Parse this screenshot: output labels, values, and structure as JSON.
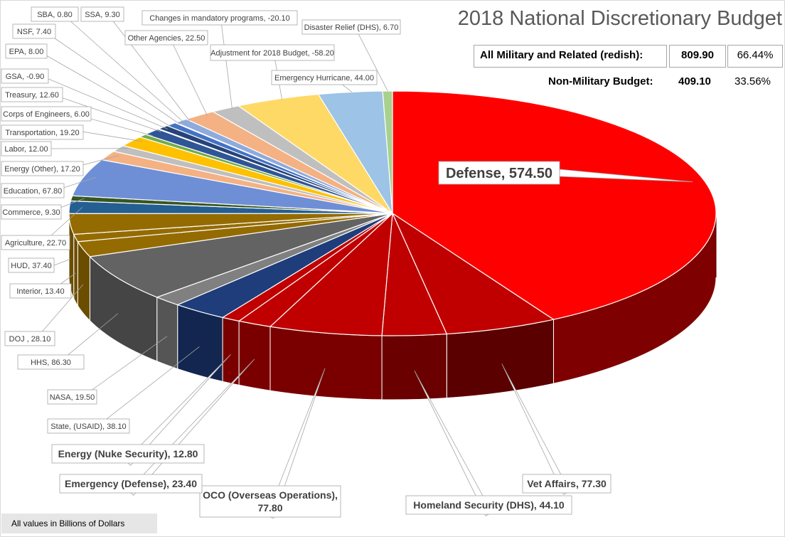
{
  "chart_data": {
    "type": "pie",
    "title": "2018 National Discretionary Budget",
    "units_note": "All values in Billions of Dollars",
    "slices": [
      {
        "name": "Defense",
        "value": 574.5,
        "label": "Defense, 574.50",
        "color": "#ff0000",
        "side": "#7f0000",
        "military": true
      },
      {
        "name": "Vet Affairs",
        "value": 77.3,
        "label": "Vet Affairs, 77.30",
        "color": "#c00000",
        "side": "#5a0000",
        "military": true
      },
      {
        "name": "Homeland Security (DHS)",
        "value": 44.1,
        "label": "Homeland Security (DHS), 44.10",
        "color": "#c00000",
        "side": "#6a0000",
        "military": true
      },
      {
        "name": "OCO (Overseas Operations)",
        "value": 77.8,
        "label": "OCO (Overseas Operations),\n77.80",
        "color": "#c00000",
        "side": "#7a0000",
        "military": true
      },
      {
        "name": "Emergency (Defense)",
        "value": 23.4,
        "label": "Emergency (Defense), 23.40",
        "color": "#c00000",
        "side": "#7a0000",
        "military": true
      },
      {
        "name": "Energy (Nuke Security)",
        "value": 12.8,
        "label": "Energy (Nuke Security), 12.80",
        "color": "#c00000",
        "side": "#7a0000",
        "military": true
      },
      {
        "name": "State, (USAID)",
        "value": 38.1,
        "label": "State, (USAID), 38.10",
        "color": "#1f3d7a",
        "side": "#122650"
      },
      {
        "name": "NASA",
        "value": 19.5,
        "label": "NASA, 19.50",
        "color": "#808080",
        "side": "#555555"
      },
      {
        "name": "HHS",
        "value": 86.3,
        "label": "HHS, 86.30",
        "color": "#636363",
        "side": "#454545"
      },
      {
        "name": "DOJ",
        "value": 28.1,
        "label": "DOJ , 28.10",
        "color": "#946b00",
        "side": "#6b4d00"
      },
      {
        "name": "Interior",
        "value": 13.4,
        "label": "Interior, 13.40",
        "color": "#946b00",
        "side": "#6b4d00"
      },
      {
        "name": "HUD",
        "value": 37.4,
        "label": "HUD, 37.40",
        "color": "#946b00",
        "side": "#6b4d00"
      },
      {
        "name": "Agriculture",
        "value": 22.7,
        "label": "Agriculture, 22.70",
        "color": "#255e91",
        "side": "#1a4468"
      },
      {
        "name": "Commerce",
        "value": 9.3,
        "label": "Commerce, 9.30",
        "color": "#375623",
        "side": "#243b17"
      },
      {
        "name": "Education",
        "value": 67.8,
        "label": "Education, 67.80",
        "color": "#6e8fd6",
        "side": "#4a64a0"
      },
      {
        "name": "Energy (Other)",
        "value": 17.2,
        "label": "Energy (Other), 17.20",
        "color": "#f4b183",
        "side": "#c08050"
      },
      {
        "name": "Labor",
        "value": 12.0,
        "label": "Labor, 12.00",
        "color": "#bfbfbf",
        "side": "#8f8f8f"
      },
      {
        "name": "Transportation",
        "value": 19.2,
        "label": "Transportation, 19.20",
        "color": "#ffc000",
        "side": "#c09000"
      },
      {
        "name": "Corps of Engineers",
        "value": 6.0,
        "label": "Corps of Engineers, 6.00",
        "color": "#70ad47",
        "side": "#4f7d32"
      },
      {
        "name": "Treasury",
        "value": 12.6,
        "label": "Treasury, 12.60",
        "color": "#2f5597",
        "side": "#213d6c"
      },
      {
        "name": "GSA",
        "value": -0.9,
        "label": "GSA, -0.90",
        "color": "#ed7d31",
        "side": "#b05a1f"
      },
      {
        "name": "EPA",
        "value": 8.0,
        "label": "EPA, 8.00",
        "color": "#264478",
        "side": "#1a3055"
      },
      {
        "name": "NSF",
        "value": 7.4,
        "label": "NSF, 7.40",
        "color": "#4472c4",
        "side": "#2f5090"
      },
      {
        "name": "SBA",
        "value": 0.8,
        "label": "SBA, 0.80",
        "color": "#636363",
        "side": "#454545"
      },
      {
        "name": "SSA",
        "value": 9.3,
        "label": "SSA, 9.30",
        "color": "#8faadc",
        "side": "#6a80a8"
      },
      {
        "name": "Other Agencies",
        "value": 22.5,
        "label": "Other Agencies, 22.50",
        "color": "#f4b183",
        "side": "#c08050"
      },
      {
        "name": "Changes in mandatory programs",
        "value": -20.1,
        "label": "Changes in mandatory programs, -20.10",
        "color": "#bfbfbf",
        "side": "#8f8f8f"
      },
      {
        "name": "Adjustment for 2018 Budget",
        "value": -58.2,
        "label": "Adjustment for 2018 Budget, -58.20",
        "color": "#ffd966",
        "side": "#c0a040"
      },
      {
        "name": "Emergency Hurricane",
        "value": 44.0,
        "label": "Emergency Hurricane, 44.00",
        "color": "#9dc3e6",
        "side": "#7090b0"
      },
      {
        "name": "Disaster Relief (DHS)",
        "value": 6.7,
        "label": "Disaster Relief (DHS), 6.70",
        "color": "#a9d18e",
        "side": "#7aa060"
      }
    ]
  },
  "summary": {
    "military_label": "All Military and Related (redish):",
    "military_value": "809.90",
    "military_pct": "66.44%",
    "nonmilitary_label": "Non-Military Budget:",
    "nonmilitary_value": "409.10",
    "nonmilitary_pct": "33.56%"
  }
}
